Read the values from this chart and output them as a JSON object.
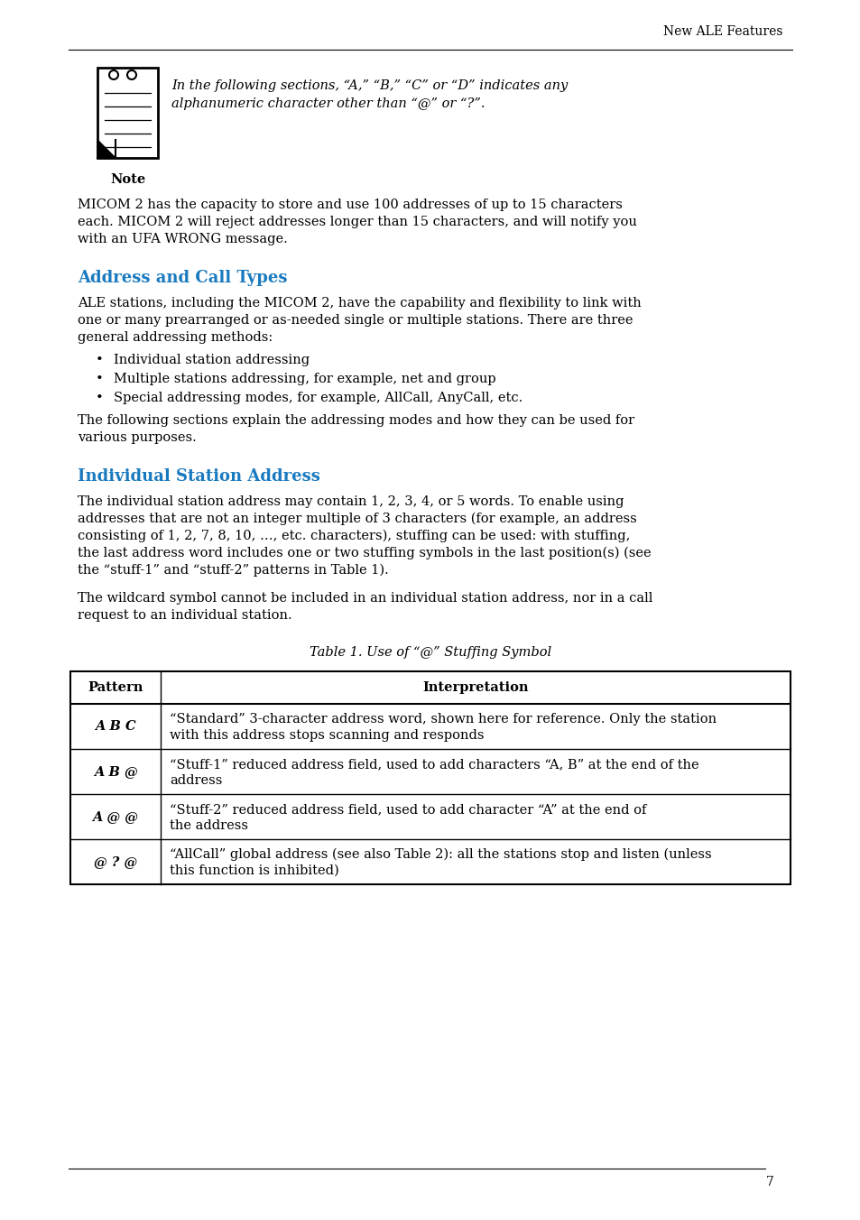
{
  "page_bg": "#ffffff",
  "header_text": "New ALE Features",
  "header_color": "#000000",
  "header_fontsize": 10,
  "page_number": "7",
  "note_italic_text_line1": "In the following sections, “A,” “B,” “C” or “D” indicates any",
  "note_italic_text_line2": "alphanumeric character other than “@” or “?”.",
  "body_text_1_lines": [
    "MICOM 2 has the capacity to store and use 100 addresses of up to 15 characters",
    "each. MICOM 2 will reject addresses longer than 15 characters, and will notify you",
    "with an UFA WRONG message."
  ],
  "section1_title": "Address and Call Types",
  "section1_color": "#1a7abf",
  "section1_body_lines": [
    "ALE stations, including the MICOM 2, have the capability and flexibility to link with",
    "one or many prearranged or as-needed single or multiple stations. There are three",
    "general addressing methods:"
  ],
  "bullet_items": [
    "Individual station addressing",
    "Multiple stations addressing, for example, net and group",
    "Special addressing modes, for example, AllCall, AnyCall, etc."
  ],
  "after_bullets_lines": [
    "The following sections explain the addressing modes and how they can be used for",
    "various purposes."
  ],
  "section2_title": "Individual Station Address",
  "section2_color": "#1a7abf",
  "section2_body1_lines": [
    "The individual station address may contain 1, 2, 3, 4, or 5 words. To enable using",
    "addresses that are not an integer multiple of 3 characters (for example, an address",
    "consisting of 1, 2, 7, 8, 10, …, etc. characters), stuffing can be used: with stuffing,",
    "the last address word includes one or two stuffing symbols in the last position(s) (see",
    "the “stuff-1” and “stuff-2” patterns in Table 1)."
  ],
  "section2_body2_lines": [
    "The wildcard symbol cannot be included in an individual station address, nor in a call",
    "request to an individual station."
  ],
  "table_title": "Table 1. Use of “@” Stuffing Symbol",
  "table_header": [
    "Pattern",
    "Interpretation"
  ],
  "table_rows": [
    {
      "pattern": "A B C",
      "interp_lines": [
        "“Standard” 3-character address word, shown here for reference. Only the station",
        "with this address stops scanning and responds"
      ]
    },
    {
      "pattern": "A B @",
      "interp_lines": [
        "“Stuff-1” reduced address field, used to add characters “A, B” at the end of the",
        "address"
      ]
    },
    {
      "pattern": "A @ @",
      "interp_lines": [
        "“Stuff-2” reduced address field, used to add character “A” at the end of",
        "the address"
      ]
    },
    {
      "pattern": "@ ? @",
      "interp_lines": [
        "“AllCall” global address (see also Table 2): all the stations stop and listen (unless",
        "this function is inhibited)"
      ]
    }
  ],
  "body_fontsize": 10.5,
  "section_title_fontsize": 13,
  "table_title_fontsize": 10.5,
  "table_fontsize": 10.5
}
